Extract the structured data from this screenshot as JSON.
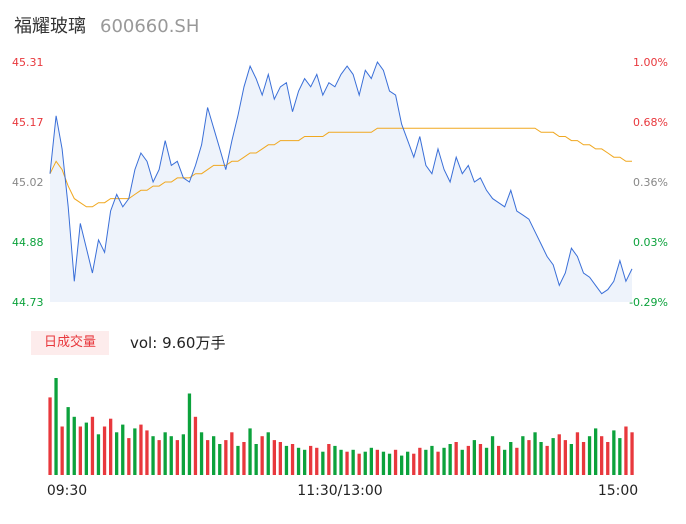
{
  "header": {
    "name": "福耀玻璃",
    "code": "600660.SH"
  },
  "volume": {
    "badge": "日成交量",
    "label": "vol:",
    "value": "9.60万手"
  },
  "colors": {
    "up": "#e8383d",
    "down": "#0ca23c",
    "flat": "#888888",
    "price_line": "#3a6fd8",
    "avg_line": "#f0a820",
    "area": "#eef3fb"
  },
  "chart_data": {
    "type": "line",
    "price_axis": {
      "ticks": [
        "45.31",
        "45.17",
        "45.02",
        "44.88",
        "44.73"
      ],
      "min": 44.73,
      "max": 45.31
    },
    "pct_axis": {
      "ticks": [
        "1.00%",
        "0.68%",
        "0.36%",
        "0.03%",
        "-0.29%"
      ]
    },
    "x_ticks": [
      "09:30",
      "11:30/13:00",
      "15:00"
    ],
    "series": [
      {
        "values": [
          45.04,
          45.18,
          45.1,
          44.96,
          44.78,
          44.92,
          44.86,
          44.8,
          44.88,
          44.85,
          44.95,
          44.99,
          44.96,
          44.98,
          45.05,
          45.09,
          45.07,
          45.02,
          45.05,
          45.12,
          45.06,
          45.07,
          45.03,
          45.02,
          45.06,
          45.11,
          45.2,
          45.15,
          45.1,
          45.05,
          45.12,
          45.18,
          45.25,
          45.3,
          45.27,
          45.23,
          45.28,
          45.22,
          45.25,
          45.26,
          45.19,
          45.24,
          45.27,
          45.25,
          45.28,
          45.23,
          45.26,
          45.25,
          45.28,
          45.3,
          45.28,
          45.23,
          45.29,
          45.27,
          45.31,
          45.29,
          45.24,
          45.23,
          45.16,
          45.12,
          45.08,
          45.13,
          45.06,
          45.04,
          45.1,
          45.05,
          45.02,
          45.08,
          45.04,
          45.06,
          45.02,
          45.03,
          45.0,
          44.98,
          44.97,
          44.96,
          45.0,
          44.95,
          44.94,
          44.93,
          44.9,
          44.87,
          44.84,
          44.82,
          44.77,
          44.8,
          44.86,
          44.84,
          44.8,
          44.79,
          44.77,
          44.75,
          44.76,
          44.78,
          44.83,
          44.78,
          44.81
        ]
      },
      {
        "values": [
          45.04,
          45.07,
          45.05,
          45.01,
          44.98,
          44.97,
          44.96,
          44.96,
          44.97,
          44.97,
          44.98,
          44.98,
          44.98,
          44.98,
          44.99,
          45.0,
          45.0,
          45.01,
          45.01,
          45.02,
          45.02,
          45.03,
          45.03,
          45.03,
          45.04,
          45.04,
          45.05,
          45.06,
          45.06,
          45.06,
          45.07,
          45.07,
          45.08,
          45.09,
          45.09,
          45.1,
          45.11,
          45.11,
          45.12,
          45.12,
          45.12,
          45.12,
          45.13,
          45.13,
          45.13,
          45.13,
          45.14,
          45.14,
          45.14,
          45.14,
          45.14,
          45.14,
          45.14,
          45.14,
          45.15,
          45.15,
          45.15,
          45.15,
          45.15,
          45.15,
          45.15,
          45.15,
          45.15,
          45.15,
          45.15,
          45.15,
          45.15,
          45.15,
          45.15,
          45.15,
          45.15,
          45.15,
          45.15,
          45.15,
          45.15,
          45.15,
          45.15,
          45.15,
          45.15,
          45.15,
          45.15,
          45.14,
          45.14,
          45.14,
          45.13,
          45.13,
          45.12,
          45.12,
          45.11,
          45.11,
          45.1,
          45.1,
          45.09,
          45.08,
          45.08,
          45.07,
          45.07
        ]
      },
      {
        "values": [
          0.4,
          0.5,
          0.25,
          0.35,
          0.3,
          0.25,
          0.27,
          0.3,
          0.21,
          0.25,
          0.29,
          0.22,
          0.26,
          0.19,
          0.24,
          0.26,
          0.23,
          0.2,
          0.18,
          0.22,
          0.2,
          0.18,
          0.21,
          0.42,
          0.3,
          0.22,
          0.18,
          0.2,
          0.16,
          0.18,
          0.22,
          0.15,
          0.17,
          0.24,
          0.16,
          0.2,
          0.22,
          0.18,
          0.17,
          0.15,
          0.16,
          0.14,
          0.13,
          0.15,
          0.14,
          0.12,
          0.16,
          0.15,
          0.13,
          0.12,
          0.13,
          0.11,
          0.12,
          0.14,
          0.13,
          0.12,
          0.11,
          0.13,
          0.1,
          0.12,
          0.11,
          0.14,
          0.13,
          0.15,
          0.12,
          0.14,
          0.16,
          0.17,
          0.13,
          0.15,
          0.18,
          0.16,
          0.14,
          0.2,
          0.15,
          0.13,
          0.17,
          0.14,
          0.2,
          0.18,
          0.22,
          0.17,
          0.15,
          0.19,
          0.21,
          0.18,
          0.16,
          0.22,
          0.17,
          0.2,
          0.24,
          0.2,
          0.17,
          0.23,
          0.19,
          0.25,
          0.22
        ]
      },
      {
        "values": [
          1,
          -1,
          1,
          -1,
          -1,
          1,
          -1,
          1,
          -1,
          1,
          1,
          -1,
          -1,
          1,
          -1,
          1,
          1,
          -1,
          1,
          -1,
          -1,
          1,
          -1,
          -1,
          1,
          -1,
          1,
          -1,
          -1,
          1,
          1,
          -1,
          1,
          -1,
          -1,
          1,
          -1,
          1,
          1,
          -1,
          1,
          -1,
          -1,
          1,
          1,
          -1,
          1,
          -1,
          -1,
          1,
          -1,
          1,
          -1,
          -1,
          1,
          -1,
          -1,
          1,
          -1,
          -1,
          1,
          1,
          -1,
          -1,
          1,
          -1,
          -1,
          1,
          -1,
          1,
          -1,
          1,
          -1,
          -1,
          1,
          -1,
          -1,
          1,
          -1,
          1,
          -1,
          -1,
          1,
          -1,
          1,
          1,
          -1,
          1,
          1,
          -1,
          -1,
          1,
          1,
          -1,
          -1,
          1,
          1
        ]
      }
    ]
  }
}
